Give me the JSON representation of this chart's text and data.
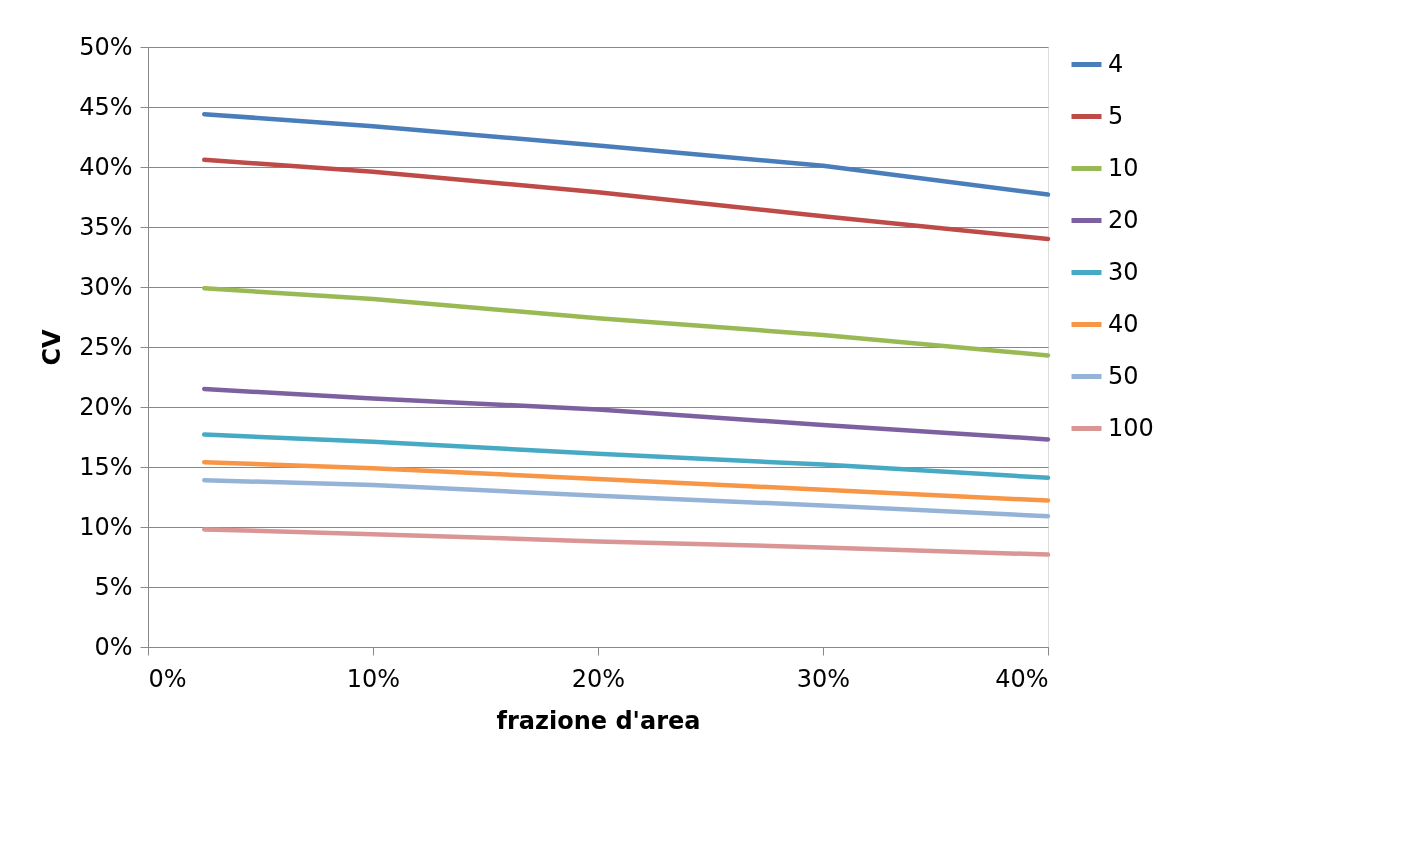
{
  "chart_data": {
    "type": "line",
    "xlabel": "frazione d'area",
    "ylabel": "CV",
    "x": [
      2.5,
      10,
      20,
      30,
      40
    ],
    "series": [
      {
        "name": "4",
        "color": "#4a7ebb",
        "values": [
          44.4,
          43.4,
          41.8,
          40.1,
          37.7
        ]
      },
      {
        "name": "5",
        "color": "#be4b48",
        "values": [
          40.6,
          39.6,
          37.9,
          35.9,
          34.0
        ]
      },
      {
        "name": "10",
        "color": "#98b954",
        "values": [
          29.9,
          29.0,
          27.4,
          26.0,
          24.3
        ]
      },
      {
        "name": "20",
        "color": "#7d60a0",
        "values": [
          21.5,
          20.7,
          19.8,
          18.5,
          17.3
        ]
      },
      {
        "name": "30",
        "color": "#46aac5",
        "values": [
          17.7,
          17.1,
          16.1,
          15.2,
          14.1
        ]
      },
      {
        "name": "40",
        "color": "#f79646",
        "values": [
          15.4,
          14.9,
          14.0,
          13.1,
          12.2
        ]
      },
      {
        "name": "50",
        "color": "#95b3d7",
        "values": [
          13.9,
          13.5,
          12.6,
          11.8,
          10.9
        ]
      },
      {
        "name": "100",
        "color": "#d99694",
        "values": [
          9.8,
          9.4,
          8.8,
          8.3,
          7.7
        ]
      }
    ],
    "xlim": [
      0,
      40
    ],
    "xticks": [
      {
        "value": 0,
        "label": "0%"
      },
      {
        "value": 10,
        "label": "10%"
      },
      {
        "value": 20,
        "label": "20%"
      },
      {
        "value": 30,
        "label": "30%"
      },
      {
        "value": 40,
        "label": "40%"
      }
    ],
    "ylim": [
      0,
      50
    ],
    "yticks": [
      {
        "value": 0,
        "label": "0%"
      },
      {
        "value": 5,
        "label": "5%"
      },
      {
        "value": 10,
        "label": "10%"
      },
      {
        "value": 15,
        "label": "15%"
      },
      {
        "value": 20,
        "label": "20%"
      },
      {
        "value": 25,
        "label": "25%"
      },
      {
        "value": 30,
        "label": "30%"
      },
      {
        "value": 35,
        "label": "35%"
      },
      {
        "value": 40,
        "label": "40%"
      },
      {
        "value": 45,
        "label": "45%"
      },
      {
        "value": 50,
        "label": "50%"
      }
    ],
    "grid": "y",
    "legend": "right",
    "marker": "none",
    "line_style": "solid"
  }
}
